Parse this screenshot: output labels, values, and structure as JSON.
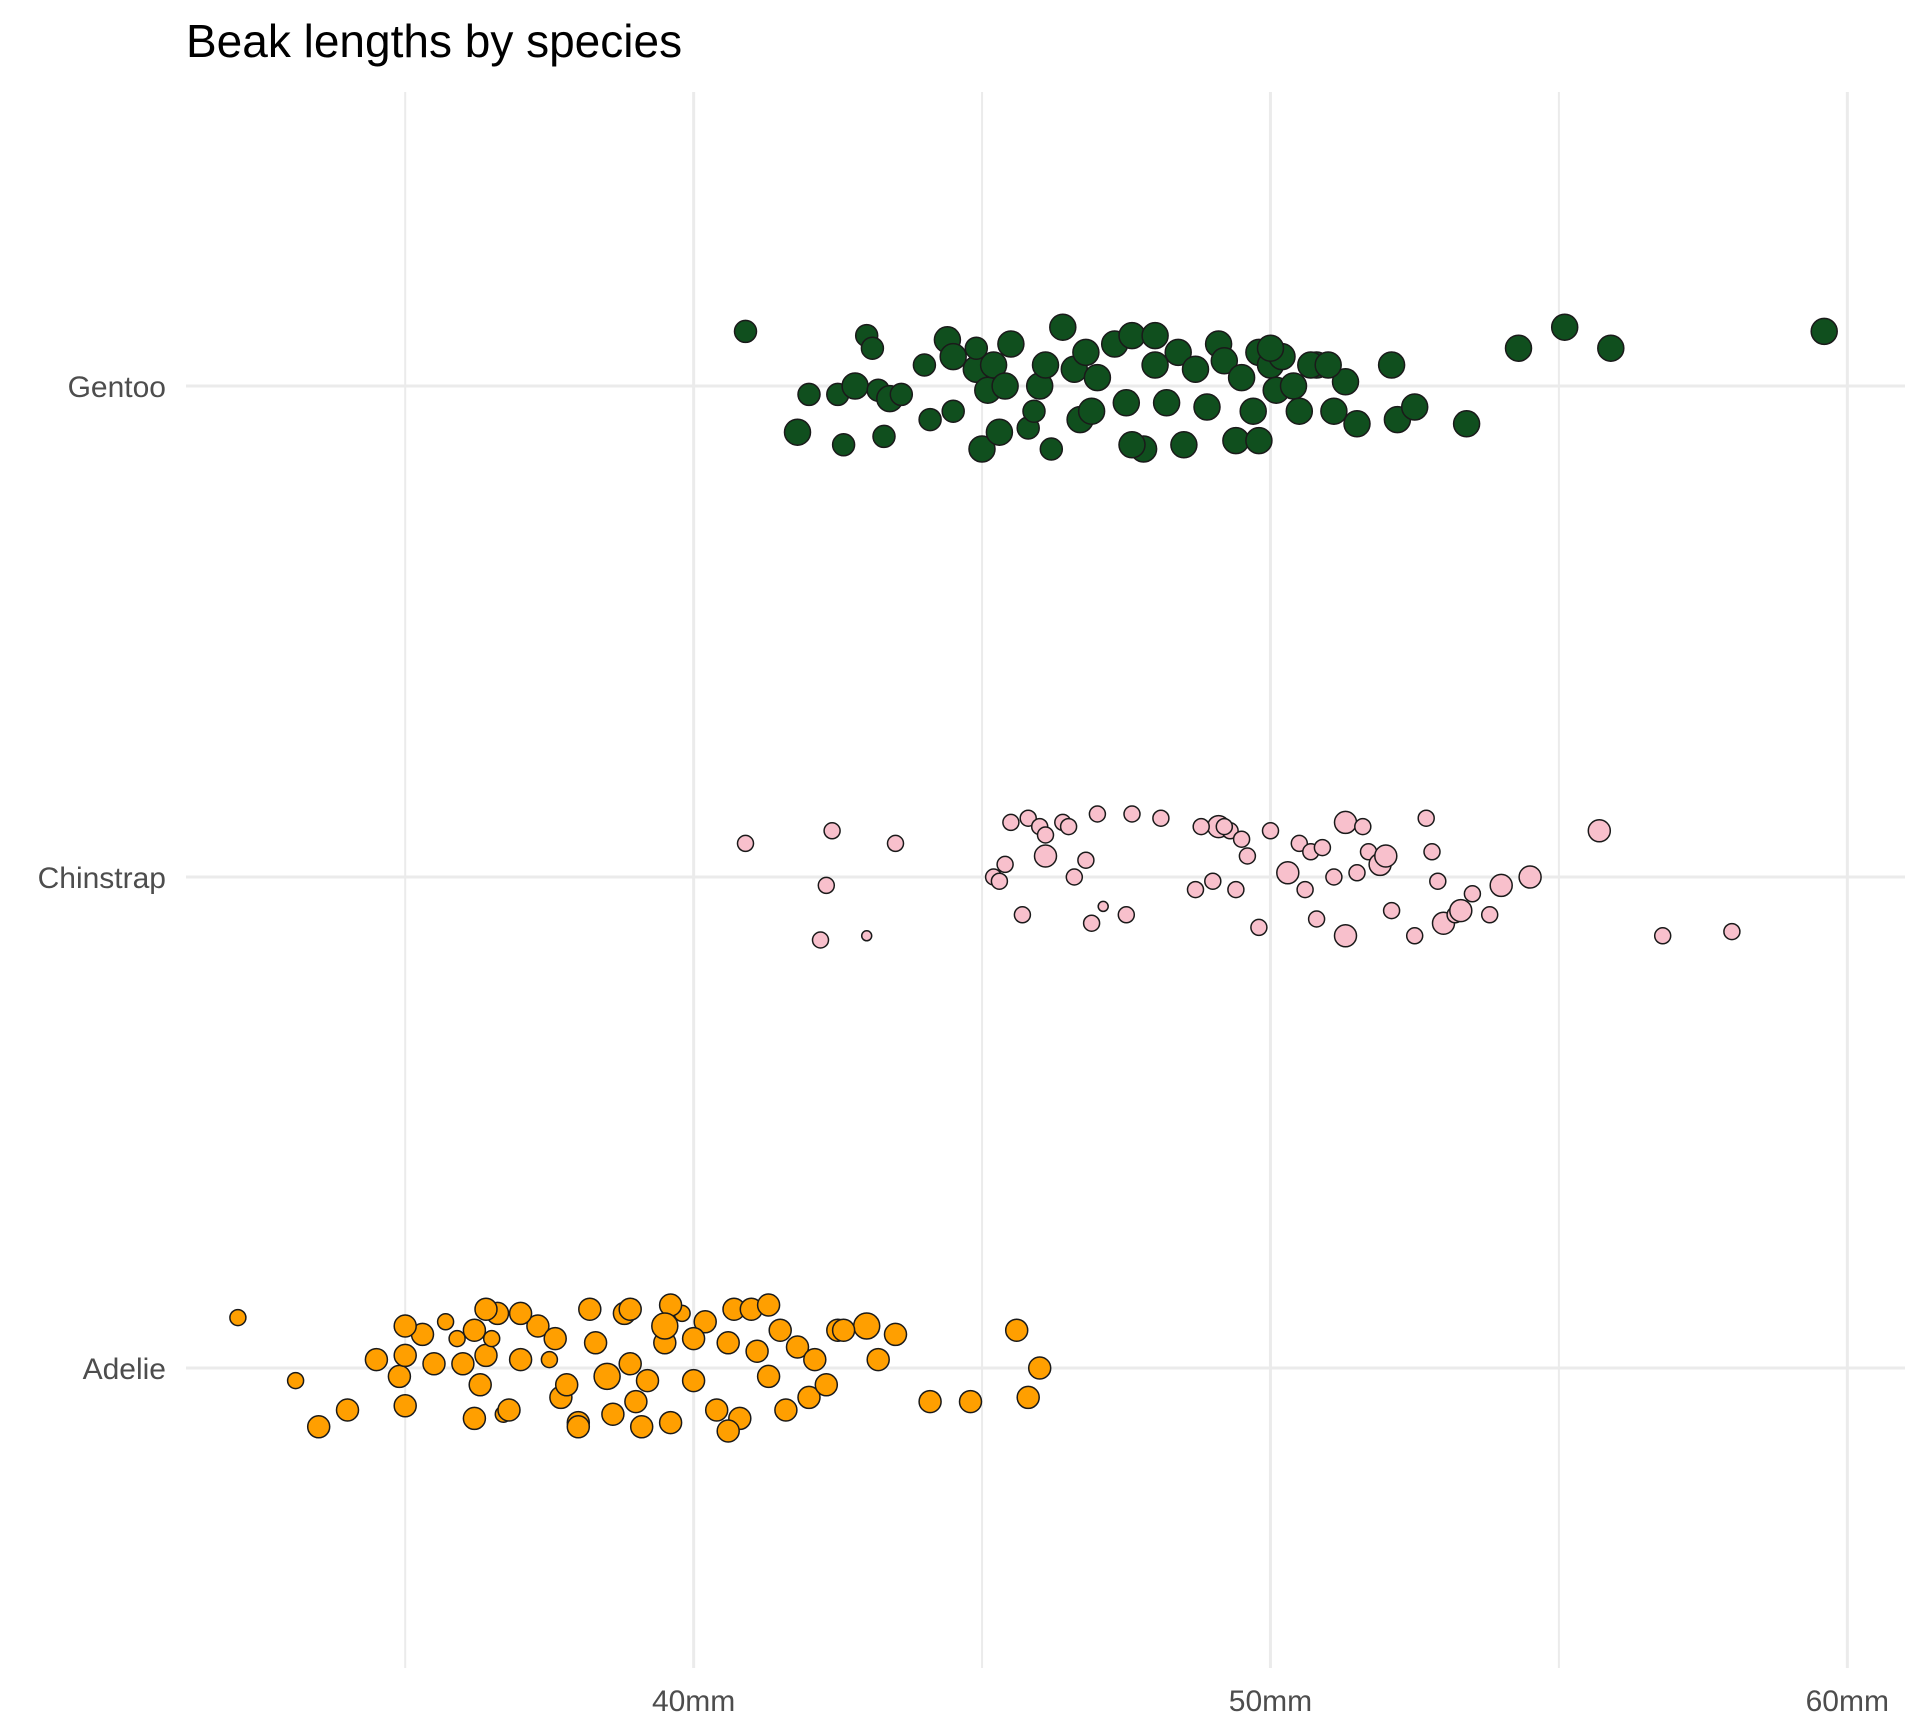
{
  "chart_data": {
    "type": "scatter",
    "title": "Beak lengths by species",
    "xlabel": "",
    "ylabel": "",
    "xlim": [
      31.2,
      61
    ],
    "x_ticks": [
      "40mm",
      "50mm",
      "60mm"
    ],
    "x_tick_values": [
      40,
      50,
      60
    ],
    "categories": [
      "Adelie",
      "Chinstrap",
      "Gentoo"
    ],
    "grid": true,
    "legend": "none",
    "colors": {
      "Adelie": "#ff9f00",
      "Chinstrap": "#f8c0cc",
      "Gentoo": "#104f1e",
      "outline": "#1a1a1a",
      "grid": "#ebebeb"
    },
    "series": [
      {
        "name": "Adelie",
        "values": [
          [
            32.1,
            0.12,
            1
          ],
          [
            33.1,
            -0.03,
            1
          ],
          [
            33.5,
            -0.14,
            2
          ],
          [
            34.0,
            -0.1,
            2
          ],
          [
            34.5,
            0.02,
            2
          ],
          [
            34.9,
            -0.02,
            2
          ],
          [
            35.0,
            0.03,
            2
          ],
          [
            35.0,
            -0.09,
            2
          ],
          [
            35.3,
            0.08,
            2
          ],
          [
            35.5,
            0.01,
            2
          ],
          [
            35.7,
            0.11,
            1
          ],
          [
            35.9,
            0.07,
            1
          ],
          [
            36.0,
            0.01,
            2
          ],
          [
            36.2,
            -0.12,
            2
          ],
          [
            36.3,
            -0.04,
            2
          ],
          [
            36.4,
            0.03,
            2
          ],
          [
            36.5,
            0.07,
            1
          ],
          [
            36.6,
            0.13,
            2
          ],
          [
            36.7,
            -0.11,
            1
          ],
          [
            36.8,
            -0.1,
            2
          ],
          [
            37.0,
            0.02,
            2
          ],
          [
            37.3,
            0.1,
            2
          ],
          [
            37.5,
            0.02,
            1
          ],
          [
            37.7,
            -0.07,
            2
          ],
          [
            37.8,
            -0.04,
            2
          ],
          [
            38.0,
            -0.13,
            2
          ],
          [
            38.3,
            0.06,
            2
          ],
          [
            38.5,
            -0.02,
            3
          ],
          [
            38.6,
            -0.11,
            2
          ],
          [
            38.8,
            0.13,
            2
          ],
          [
            38.9,
            0.01,
            2
          ],
          [
            39.0,
            -0.08,
            2
          ],
          [
            39.2,
            -0.03,
            2
          ],
          [
            39.5,
            0.06,
            2
          ],
          [
            39.6,
            -0.13,
            2
          ],
          [
            39.8,
            0.13,
            1
          ],
          [
            40.0,
            -0.03,
            2
          ],
          [
            40.2,
            0.11,
            2
          ],
          [
            40.4,
            -0.1,
            2
          ],
          [
            40.6,
            0.06,
            2
          ],
          [
            40.8,
            -0.12,
            2
          ],
          [
            41.1,
            0.04,
            2
          ],
          [
            41.3,
            -0.02,
            2
          ],
          [
            41.5,
            0.09,
            2
          ],
          [
            41.6,
            -0.1,
            2
          ],
          [
            41.8,
            0.05,
            2
          ],
          [
            42.0,
            -0.07,
            2
          ],
          [
            42.1,
            0.02,
            2
          ],
          [
            42.3,
            -0.04,
            2
          ],
          [
            42.5,
            0.09,
            2
          ],
          [
            43.2,
            0.02,
            2
          ],
          [
            43.5,
            0.08,
            2
          ],
          [
            44.1,
            -0.08,
            2
          ],
          [
            44.8,
            -0.08,
            2
          ],
          [
            45.6,
            0.09,
            2
          ],
          [
            46.0,
            0.0,
            2
          ],
          [
            45.8,
            -0.07,
            2
          ],
          [
            36.4,
            0.14,
            2
          ],
          [
            37.0,
            0.13,
            2
          ],
          [
            38.2,
            0.14,
            2
          ],
          [
            38.9,
            0.14,
            2
          ],
          [
            39.6,
            0.15,
            2
          ],
          [
            40.7,
            0.14,
            2
          ],
          [
            41.0,
            0.14,
            2
          ],
          [
            35.0,
            0.1,
            2
          ],
          [
            36.2,
            0.09,
            2
          ],
          [
            37.6,
            0.07,
            2
          ],
          [
            38.0,
            -0.14,
            2
          ],
          [
            39.1,
            -0.14,
            2
          ],
          [
            40.6,
            -0.15,
            2
          ],
          [
            41.3,
            0.15,
            2
          ],
          [
            43.0,
            0.1,
            3
          ],
          [
            42.6,
            0.09,
            2
          ],
          [
            39.5,
            0.1,
            3
          ],
          [
            40.0,
            0.07,
            2
          ]
        ]
      },
      {
        "name": "Chinstrap",
        "values": [
          [
            40.9,
            0.08,
            1
          ],
          [
            42.4,
            0.11,
            1
          ],
          [
            42.3,
            -0.02,
            1
          ],
          [
            42.2,
            -0.15,
            1
          ],
          [
            43.0,
            -0.14,
            0
          ],
          [
            43.5,
            0.08,
            1
          ],
          [
            45.2,
            0.0,
            1
          ],
          [
            45.3,
            -0.01,
            1
          ],
          [
            45.4,
            0.03,
            1
          ],
          [
            45.5,
            0.13,
            1
          ],
          [
            45.7,
            -0.09,
            1
          ],
          [
            45.8,
            0.14,
            1
          ],
          [
            46.0,
            0.12,
            1
          ],
          [
            46.1,
            0.05,
            2
          ],
          [
            46.4,
            0.13,
            1
          ],
          [
            46.5,
            0.12,
            1
          ],
          [
            46.6,
            0.0,
            1
          ],
          [
            46.8,
            0.04,
            1
          ],
          [
            46.9,
            -0.11,
            1
          ],
          [
            47.0,
            0.15,
            1
          ],
          [
            47.1,
            -0.07,
            0
          ],
          [
            47.5,
            -0.09,
            1
          ],
          [
            47.6,
            0.15,
            1
          ],
          [
            48.1,
            0.14,
            1
          ],
          [
            48.7,
            -0.03,
            1
          ],
          [
            49.1,
            0.12,
            2
          ],
          [
            49.3,
            0.11,
            1
          ],
          [
            49.5,
            0.09,
            1
          ],
          [
            49.0,
            -0.01,
            1
          ],
          [
            49.4,
            -0.03,
            1
          ],
          [
            49.6,
            0.05,
            1
          ],
          [
            49.8,
            -0.12,
            1
          ],
          [
            50.0,
            0.11,
            1
          ],
          [
            50.3,
            0.01,
            2
          ],
          [
            50.5,
            0.08,
            1
          ],
          [
            50.6,
            -0.03,
            1
          ],
          [
            50.7,
            0.06,
            1
          ],
          [
            50.8,
            -0.1,
            1
          ],
          [
            50.9,
            0.07,
            1
          ],
          [
            51.1,
            0.0,
            1
          ],
          [
            51.3,
            -0.14,
            2
          ],
          [
            51.3,
            0.13,
            2
          ],
          [
            51.5,
            0.01,
            1
          ],
          [
            51.6,
            0.12,
            1
          ],
          [
            51.7,
            0.06,
            1
          ],
          [
            51.9,
            0.03,
            2
          ],
          [
            52.0,
            0.05,
            2
          ],
          [
            52.1,
            -0.08,
            1
          ],
          [
            52.5,
            -0.14,
            1
          ],
          [
            52.7,
            0.14,
            1
          ],
          [
            52.8,
            0.06,
            1
          ],
          [
            52.9,
            -0.01,
            1
          ],
          [
            53.0,
            -0.11,
            2
          ],
          [
            53.2,
            -0.09,
            1
          ],
          [
            53.3,
            -0.08,
            2
          ],
          [
            53.5,
            -0.04,
            1
          ],
          [
            53.8,
            -0.09,
            1
          ],
          [
            54.0,
            -0.02,
            2
          ],
          [
            54.5,
            0.0,
            2
          ],
          [
            55.7,
            0.11,
            2
          ],
          [
            56.8,
            -0.14,
            1
          ],
          [
            58.0,
            -0.13,
            1
          ],
          [
            48.8,
            0.12,
            1
          ],
          [
            49.2,
            0.12,
            1
          ],
          [
            46.1,
            0.1,
            1
          ]
        ]
      },
      {
        "name": "Gentoo",
        "values": [
          [
            40.9,
            0.13,
            2
          ],
          [
            41.8,
            -0.11,
            3
          ],
          [
            42.0,
            -0.02,
            2
          ],
          [
            42.5,
            -0.02,
            2
          ],
          [
            42.6,
            -0.14,
            2
          ],
          [
            42.8,
            0.0,
            3
          ],
          [
            43.0,
            0.12,
            2
          ],
          [
            43.1,
            0.09,
            2
          ],
          [
            43.2,
            -0.01,
            2
          ],
          [
            43.3,
            -0.12,
            2
          ],
          [
            43.4,
            -0.03,
            3
          ],
          [
            43.6,
            -0.02,
            2
          ],
          [
            44.0,
            0.05,
            2
          ],
          [
            44.1,
            -0.08,
            2
          ],
          [
            44.4,
            0.11,
            3
          ],
          [
            44.5,
            0.07,
            3
          ],
          [
            44.5,
            -0.06,
            2
          ],
          [
            44.9,
            0.04,
            3
          ],
          [
            45.0,
            -0.15,
            3
          ],
          [
            45.1,
            -0.01,
            3
          ],
          [
            45.2,
            0.05,
            3
          ],
          [
            45.3,
            -0.11,
            3
          ],
          [
            45.4,
            0.0,
            3
          ],
          [
            45.5,
            0.1,
            3
          ],
          [
            45.8,
            -0.1,
            2
          ],
          [
            46.0,
            0.0,
            3
          ],
          [
            46.1,
            0.05,
            3
          ],
          [
            46.2,
            -0.15,
            2
          ],
          [
            46.4,
            0.14,
            3
          ],
          [
            46.6,
            0.04,
            3
          ],
          [
            46.7,
            -0.08,
            3
          ],
          [
            46.8,
            0.08,
            3
          ],
          [
            46.9,
            -0.06,
            3
          ],
          [
            47.0,
            0.02,
            3
          ],
          [
            47.3,
            0.1,
            3
          ],
          [
            47.5,
            -0.04,
            3
          ],
          [
            47.6,
            0.12,
            3
          ],
          [
            47.8,
            -0.15,
            3
          ],
          [
            48.0,
            0.12,
            3
          ],
          [
            48.2,
            -0.04,
            3
          ],
          [
            48.4,
            0.08,
            3
          ],
          [
            48.5,
            -0.14,
            3
          ],
          [
            48.7,
            0.04,
            3
          ],
          [
            48.9,
            -0.05,
            3
          ],
          [
            49.1,
            0.1,
            3
          ],
          [
            49.2,
            0.06,
            3
          ],
          [
            49.4,
            -0.13,
            3
          ],
          [
            49.5,
            0.02,
            3
          ],
          [
            49.7,
            -0.06,
            3
          ],
          [
            49.8,
            0.08,
            3
          ],
          [
            50.0,
            0.05,
            3
          ],
          [
            50.1,
            -0.01,
            3
          ],
          [
            50.2,
            0.07,
            3
          ],
          [
            50.4,
            0.0,
            3
          ],
          [
            50.5,
            -0.06,
            3
          ],
          [
            50.8,
            0.05,
            3
          ],
          [
            51.1,
            -0.06,
            3
          ],
          [
            51.3,
            0.01,
            3
          ],
          [
            51.5,
            -0.09,
            3
          ],
          [
            52.1,
            0.05,
            3
          ],
          [
            52.2,
            -0.08,
            3
          ],
          [
            52.5,
            -0.05,
            3
          ],
          [
            53.4,
            -0.09,
            3
          ],
          [
            54.3,
            0.09,
            3
          ],
          [
            55.1,
            0.14,
            3
          ],
          [
            55.9,
            0.09,
            3
          ],
          [
            59.6,
            0.13,
            3
          ],
          [
            44.9,
            0.09,
            2
          ],
          [
            45.9,
            -0.06,
            2
          ],
          [
            47.6,
            -0.14,
            3
          ],
          [
            48.0,
            0.05,
            3
          ],
          [
            49.8,
            -0.13,
            3
          ],
          [
            50.0,
            0.09,
            3
          ],
          [
            50.7,
            0.05,
            3
          ],
          [
            51.0,
            0.05,
            3
          ]
        ]
      }
    ]
  }
}
